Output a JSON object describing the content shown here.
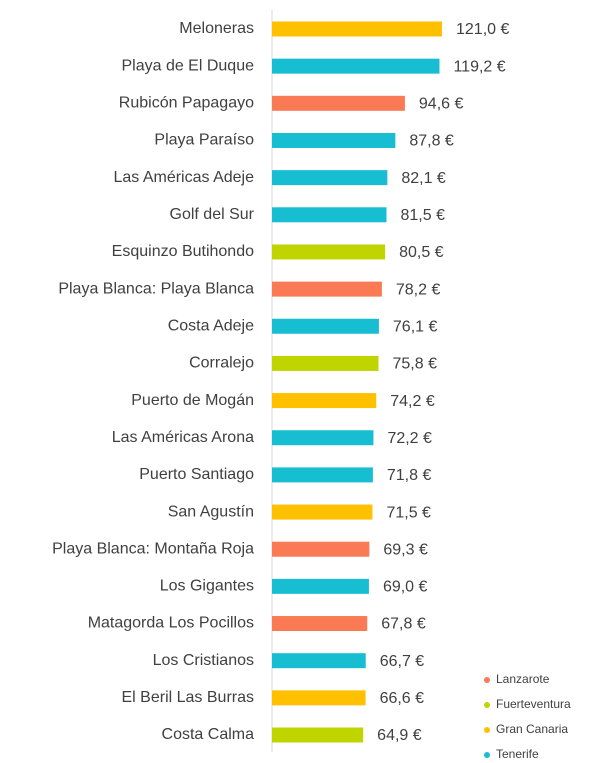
{
  "chart_data": {
    "type": "bar",
    "orientation": "horizontal",
    "categories": [
      "Meloneras",
      "Playa de El Duque",
      "Rubicón Papagayo",
      "Playa Paraíso",
      "Las Américas Adeje",
      "Golf del Sur",
      "Esquinzo Butihondo",
      "Playa Blanca: Playa Blanca",
      "Costa Adeje",
      "Corralejo",
      "Puerto de Mogán",
      "Las Américas Arona",
      "Puerto Santiago",
      "San Agustín",
      "Playa Blanca: Montaña Roja",
      "Los Gigantes",
      "Matagorda Los Pocillos",
      "Los Cristianos",
      "El Beril Las Burras",
      "Costa Calma"
    ],
    "series": [
      {
        "name": "Lanzarote",
        "color": "#fa7a55",
        "values": [
          null,
          null,
          94.6,
          null,
          null,
          null,
          null,
          78.2,
          null,
          null,
          null,
          null,
          null,
          null,
          69.3,
          null,
          67.8,
          null,
          null,
          null
        ],
        "value_labels": [
          null,
          null,
          "94,6 €",
          null,
          null,
          null,
          null,
          "78,2 €",
          null,
          null,
          null,
          null,
          null,
          null,
          "69,3 €",
          null,
          "67,8 €",
          null,
          null,
          null
        ]
      },
      {
        "name": "Fuerteventura",
        "color": "#c0d400",
        "values": [
          null,
          null,
          null,
          null,
          null,
          null,
          80.5,
          null,
          null,
          75.8,
          null,
          null,
          null,
          null,
          null,
          null,
          null,
          null,
          null,
          64.9
        ],
        "value_labels": [
          null,
          null,
          null,
          null,
          null,
          null,
          "80,5 €",
          null,
          null,
          "75,8 €",
          null,
          null,
          null,
          null,
          null,
          null,
          null,
          null,
          null,
          "64,9 €"
        ]
      },
      {
        "name": "Gran Canaria",
        "color": "#ffc000",
        "values": [
          121.0,
          null,
          null,
          null,
          null,
          null,
          null,
          null,
          null,
          null,
          74.2,
          null,
          null,
          71.5,
          null,
          null,
          null,
          null,
          66.6,
          null
        ],
        "value_labels": [
          "121,0 €",
          null,
          null,
          null,
          null,
          null,
          null,
          null,
          null,
          null,
          "74,2 €",
          null,
          null,
          "71,5 €",
          null,
          null,
          null,
          null,
          "66,6 €",
          null
        ]
      },
      {
        "name": "Tenerife",
        "color": "#17bed1",
        "values": [
          null,
          119.2,
          null,
          87.8,
          82.1,
          81.5,
          null,
          null,
          76.1,
          null,
          null,
          72.2,
          71.8,
          null,
          null,
          69.0,
          null,
          66.7,
          null,
          null
        ],
        "value_labels": [
          null,
          "119,2 €",
          null,
          "87,8 €",
          "82,1 €",
          "81,5 €",
          null,
          null,
          "76,1 €",
          null,
          null,
          "72,2 €",
          "71,8 €",
          null,
          null,
          "69,0 €",
          null,
          "66,7 €",
          null,
          null
        ]
      }
    ],
    "legend": "bottom-right"
  }
}
